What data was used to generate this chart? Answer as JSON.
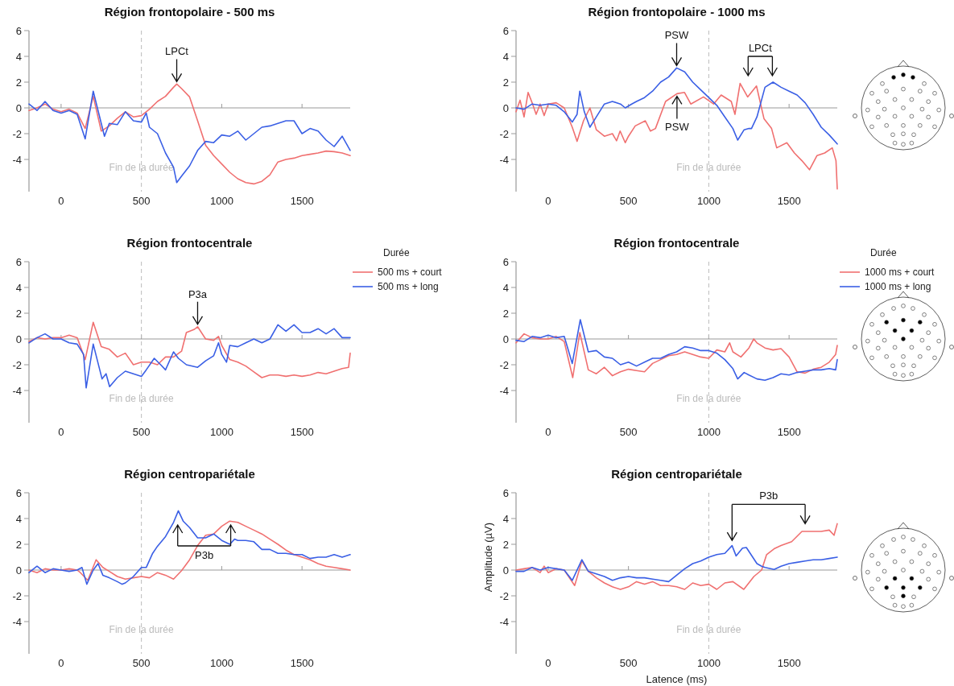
{
  "chart_data": [
    {
      "type": "line",
      "title": "Région frontopolaire - 500 ms",
      "xlim": [
        -200,
        1800
      ],
      "ylim": [
        -6.5,
        6
      ],
      "xticks": [
        0,
        500,
        1000,
        1500
      ],
      "yticks": [
        -4,
        -2,
        0,
        2,
        4,
        6
      ],
      "ref_lines": [
        {
          "axis": "x",
          "value": 500,
          "label": "Fin de la durée",
          "color": "#bbbbbb",
          "line_style": "dashed"
        }
      ],
      "annotations": [
        {
          "text": "LPCt",
          "x": 720,
          "y": 1.85
        }
      ],
      "series": [
        {
          "color": "#f07070",
          "x": [
            -200,
            -150,
            -100,
            -50,
            0,
            50,
            100,
            150,
            200,
            250,
            300,
            350,
            400,
            450,
            500,
            550,
            600,
            650,
            700,
            720,
            750,
            800,
            850,
            900,
            950,
            1000,
            1050,
            1100,
            1150,
            1200,
            1250,
            1300,
            1350,
            1400,
            1450,
            1500,
            1550,
            1600,
            1650,
            1700,
            1750,
            1800
          ],
          "values": [
            -0.2,
            0,
            0.3,
            -0.1,
            -0.3,
            -0.1,
            -0.4,
            -1.6,
            0.9,
            -1.8,
            -1.4,
            -0.8,
            -0.3,
            -0.7,
            -0.6,
            -0.1,
            0.5,
            0.9,
            1.6,
            1.85,
            1.5,
            0.85,
            -1.0,
            -2.9,
            -3.7,
            -4.35,
            -5.0,
            -5.5,
            -5.8,
            -5.9,
            -5.7,
            -5.2,
            -4.2,
            -4.0,
            -3.9,
            -3.7,
            -3.6,
            -3.5,
            -3.35,
            -3.4,
            -3.5,
            -3.7
          ]
        },
        {
          "color": "#3a5fe5",
          "x": [
            -200,
            -150,
            -100,
            -50,
            0,
            50,
            100,
            150,
            200,
            250,
            270,
            300,
            350,
            400,
            450,
            500,
            530,
            550,
            600,
            650,
            700,
            720,
            750,
            800,
            850,
            900,
            950,
            1000,
            1050,
            1100,
            1150,
            1200,
            1250,
            1300,
            1350,
            1400,
            1450,
            1500,
            1550,
            1600,
            1650,
            1700,
            1750,
            1800
          ],
          "values": [
            0.3,
            -0.2,
            0.5,
            -0.2,
            -0.4,
            -0.2,
            -0.5,
            -2.4,
            1.3,
            -1.2,
            -2.2,
            -1.2,
            -1.3,
            -0.3,
            -1.0,
            -1.1,
            -0.4,
            -1.5,
            -2.0,
            -3.5,
            -4.6,
            -5.8,
            -5.3,
            -4.5,
            -3.3,
            -2.6,
            -2.7,
            -2.1,
            -2.2,
            -1.8,
            -2.5,
            -2.0,
            -1.5,
            -1.4,
            -1.2,
            -1.0,
            -1.0,
            -2.0,
            -1.6,
            -1.8,
            -2.5,
            -3.0,
            -2.2,
            -3.3
          ]
        }
      ]
    },
    {
      "type": "line",
      "title": "Région frontopolaire - 1000 ms",
      "xlim": [
        -200,
        1800
      ],
      "ylim": [
        -6.5,
        6
      ],
      "xticks": [
        0,
        500,
        1000,
        1500
      ],
      "yticks": [
        -4,
        -2,
        0,
        2,
        4,
        6
      ],
      "ref_lines": [
        {
          "axis": "x",
          "value": 1000,
          "label": "Fin de la durée",
          "color": "#bbbbbb",
          "line_style": "dashed"
        }
      ],
      "annotations": [
        {
          "text": "PSW",
          "x": 800,
          "y": 3.1
        },
        {
          "text": "PSW",
          "x": 802,
          "y": 1.1
        },
        "LPCt"
      ],
      "series": [
        {
          "color": "#f07070",
          "x": [
            -200,
            -175,
            -150,
            -125,
            -100,
            -75,
            -50,
            -25,
            0,
            50,
            100,
            150,
            180,
            220,
            260,
            300,
            350,
            400,
            426,
            448,
            480,
            500,
            542,
            605,
            637,
            668,
            731,
            802,
            849,
            888,
            967,
            1030,
            1077,
            1140,
            1163,
            1195,
            1242,
            1297,
            1344,
            1391,
            1423,
            1486,
            1533,
            1580,
            1627,
            1674,
            1722,
            1769,
            1792,
            1800
          ],
          "values": [
            -0.3,
            0.6,
            -0.7,
            1.2,
            0.4,
            -0.5,
            0.3,
            -0.6,
            0.3,
            0.4,
            0.0,
            -1.5,
            -2.6,
            -1.0,
            0.0,
            -1.7,
            -2.2,
            -2.0,
            -2.55,
            -1.8,
            -2.7,
            -2.2,
            -1.4,
            -1.0,
            -1.8,
            -1.6,
            0.5,
            1.1,
            1.2,
            0.3,
            0.85,
            0.3,
            1.0,
            0.5,
            -0.5,
            1.9,
            0.85,
            1.7,
            -0.85,
            -1.6,
            -3.1,
            -2.7,
            -3.5,
            -4.1,
            -4.8,
            -3.7,
            -3.5,
            -3.1,
            -4.1,
            -6.3
          ]
        },
        {
          "color": "#3a5fe5",
          "x": [
            -200,
            -150,
            -100,
            -50,
            0,
            50,
            100,
            150,
            180,
            197,
            225,
            260,
            300,
            350,
            400,
            450,
            480,
            520,
            550,
            600,
            650,
            700,
            750,
            800,
            850,
            900,
            950,
            1000,
            1050,
            1100,
            1150,
            1180,
            1220,
            1250,
            1266,
            1300,
            1350,
            1400,
            1450,
            1500,
            1550,
            1600,
            1650,
            1700,
            1750,
            1800
          ],
          "values": [
            0.0,
            -0.1,
            0.3,
            0.2,
            0.3,
            0.2,
            -0.3,
            -1.1,
            -0.5,
            1.3,
            -0.3,
            -1.5,
            -0.7,
            0.3,
            0.5,
            0.3,
            0.0,
            0.3,
            0.5,
            0.8,
            1.3,
            2.0,
            2.4,
            3.1,
            2.8,
            2.0,
            1.4,
            0.8,
            0.2,
            -0.7,
            -1.6,
            -2.5,
            -1.7,
            -1.6,
            -1.6,
            -0.7,
            1.6,
            2.0,
            1.6,
            1.3,
            1.0,
            0.4,
            -0.5,
            -1.5,
            -2.1,
            -2.8
          ]
        }
      ]
    },
    {
      "type": "line",
      "title": "Région frontocentrale",
      "xlim": [
        -200,
        1800
      ],
      "ylim": [
        -6.5,
        6
      ],
      "xticks": [
        0,
        500,
        1000,
        1500
      ],
      "yticks": [
        -4,
        -2,
        0,
        2,
        4,
        6
      ],
      "legend": "right",
      "legend_title": "Durée",
      "ref_lines": [
        {
          "axis": "x",
          "value": 500,
          "label": "Fin de la durée",
          "color": "#bbbbbb",
          "line_style": "dashed"
        }
      ],
      "annotations": [
        {
          "text": "P3a",
          "x": 850,
          "y": 0.95
        }
      ],
      "series": [
        {
          "name": "500 ms + court",
          "color": "#f07070",
          "x": [
            -200,
            -150,
            -100,
            -50,
            0,
            50,
            100,
            150,
            200,
            250,
            300,
            350,
            400,
            450,
            500,
            550,
            600,
            650,
            700,
            750,
            780,
            830,
            850,
            900,
            950,
            980,
            1000,
            1050,
            1100,
            1150,
            1200,
            1250,
            1300,
            1350,
            1400,
            1450,
            1500,
            1550,
            1600,
            1650,
            1700,
            1750,
            1790,
            1800
          ],
          "values": [
            -0.2,
            0.1,
            0.0,
            0.1,
            0.1,
            0.3,
            0.1,
            -1.6,
            1.3,
            -0.6,
            -0.8,
            -1.4,
            -1.1,
            -2.0,
            -1.8,
            -1.8,
            -2.0,
            -1.4,
            -1.4,
            -0.95,
            0.5,
            0.75,
            0.95,
            0.0,
            -0.1,
            0.2,
            -0.5,
            -1.6,
            -1.8,
            -2.1,
            -2.55,
            -3.0,
            -2.8,
            -2.8,
            -2.9,
            -2.8,
            -2.9,
            -2.8,
            -2.6,
            -2.7,
            -2.5,
            -2.3,
            -2.2,
            -1.1
          ]
        },
        {
          "name": "500 ms + long",
          "color": "#3a5fe5",
          "x": [
            -200,
            -150,
            -100,
            -50,
            0,
            50,
            100,
            140,
            156,
            200,
            255,
            280,
            302,
            350,
            400,
            450,
            500,
            530,
            580,
            620,
            650,
            700,
            730,
            780,
            850,
            900,
            950,
            980,
            1000,
            1030,
            1050,
            1100,
            1150,
            1200,
            1250,
            1300,
            1350,
            1400,
            1450,
            1500,
            1550,
            1600,
            1650,
            1700,
            1750,
            1800
          ],
          "values": [
            -0.3,
            0.1,
            0.4,
            0.0,
            0.0,
            -0.3,
            -0.4,
            -1.2,
            -3.8,
            -0.4,
            -3.1,
            -2.7,
            -3.7,
            -3.0,
            -2.5,
            -2.7,
            -2.9,
            -2.4,
            -1.5,
            -2.0,
            -2.4,
            -1.0,
            -1.5,
            -2.0,
            -2.2,
            -1.7,
            -1.3,
            -0.3,
            -1.2,
            -1.8,
            -0.5,
            -0.6,
            -0.3,
            0.0,
            -0.3,
            0.0,
            1.1,
            0.6,
            1.1,
            0.5,
            0.5,
            0.8,
            0.4,
            0.8,
            0.1,
            0.1
          ]
        }
      ]
    },
    {
      "type": "line",
      "title": "Région frontocentrale",
      "xlim": [
        -200,
        1800
      ],
      "ylim": [
        -6.5,
        6
      ],
      "xticks": [
        0,
        500,
        1000,
        1500
      ],
      "yticks": [
        -4,
        -2,
        0,
        2,
        4,
        6
      ],
      "legend": "right",
      "legend_title": "Durée",
      "ref_lines": [
        {
          "axis": "x",
          "value": 1000,
          "label": "Fin de la durée",
          "color": "#bbbbbb",
          "line_style": "dashed"
        }
      ],
      "series": [
        {
          "name": "1000 ms + court",
          "color": "#f07070",
          "x": [
            -200,
            -150,
            -100,
            -50,
            0,
            50,
            100,
            153,
            197,
            250,
            300,
            350,
            400,
            450,
            500,
            550,
            600,
            650,
            700,
            750,
            800,
            850,
            900,
            950,
            1000,
            1050,
            1100,
            1130,
            1150,
            1200,
            1250,
            1280,
            1300,
            1350,
            1400,
            1450,
            1500,
            1550,
            1600,
            1650,
            1700,
            1750,
            1790,
            1800
          ],
          "values": [
            -0.3,
            0.4,
            0.1,
            0.0,
            0.0,
            0.2,
            -0.2,
            -3.0,
            0.5,
            -2.4,
            -2.7,
            -2.2,
            -2.85,
            -2.55,
            -2.35,
            -2.45,
            -2.55,
            -1.9,
            -1.6,
            -1.3,
            -1.2,
            -1.0,
            -1.2,
            -1.4,
            -1.5,
            -0.85,
            -1.0,
            -0.3,
            -1.0,
            -1.4,
            -0.7,
            0.0,
            -0.3,
            -0.7,
            -0.85,
            -0.75,
            -1.4,
            -2.55,
            -2.65,
            -2.35,
            -2.2,
            -1.8,
            -1.2,
            -0.5
          ]
        },
        {
          "name": "1000 ms + long",
          "color": "#3a5fe5",
          "x": [
            -200,
            -150,
            -100,
            -50,
            0,
            50,
            100,
            150,
            200,
            250,
            300,
            350,
            400,
            450,
            500,
            550,
            600,
            650,
            700,
            750,
            800,
            850,
            900,
            950,
            1000,
            1050,
            1100,
            1150,
            1180,
            1220,
            1250,
            1300,
            1350,
            1400,
            1450,
            1500,
            1550,
            1600,
            1650,
            1700,
            1750,
            1790,
            1800
          ],
          "values": [
            -0.1,
            -0.2,
            0.2,
            0.1,
            0.3,
            0.1,
            0.2,
            -1.9,
            1.5,
            -1.0,
            -0.9,
            -1.4,
            -1.5,
            -2.0,
            -1.8,
            -2.1,
            -1.8,
            -1.5,
            -1.5,
            -1.2,
            -1.0,
            -0.6,
            -0.7,
            -0.9,
            -0.9,
            -1.1,
            -1.6,
            -2.3,
            -3.1,
            -2.6,
            -2.8,
            -3.1,
            -3.2,
            -3.0,
            -2.7,
            -2.8,
            -2.6,
            -2.5,
            -2.4,
            -2.4,
            -2.3,
            -2.4,
            -1.6
          ]
        }
      ]
    },
    {
      "type": "line",
      "title": "Région centropariétale",
      "xlim": [
        -200,
        1800
      ],
      "ylim": [
        -6.5,
        6
      ],
      "xticks": [
        0,
        500,
        1000,
        1500
      ],
      "yticks": [
        -4,
        -2,
        0,
        2,
        4,
        6
      ],
      "ref_lines": [
        {
          "axis": "x",
          "value": 500,
          "label": "Fin de la durée",
          "color": "#bbbbbb",
          "line_style": "dashed"
        }
      ],
      "annotations": [
        "P3b"
      ],
      "series": [
        {
          "color": "#f07070",
          "x": [
            -200,
            -150,
            -100,
            -50,
            0,
            50,
            100,
            120,
            166,
            218,
            260,
            300,
            350,
            400,
            450,
            500,
            550,
            600,
            650,
            700,
            750,
            800,
            850,
            900,
            950,
            1000,
            1050,
            1100,
            1150,
            1200,
            1250,
            1300,
            1350,
            1400,
            1450,
            1500,
            1550,
            1600,
            1650,
            1700,
            1750,
            1800
          ],
          "values": [
            0.0,
            -0.2,
            0.1,
            0.0,
            0.0,
            0.1,
            0.0,
            -0.2,
            -0.8,
            0.8,
            0.2,
            -0.1,
            -0.5,
            -0.7,
            -0.6,
            -0.5,
            -0.6,
            -0.2,
            -0.4,
            -0.7,
            -0.05,
            0.8,
            1.9,
            2.7,
            2.8,
            3.4,
            3.8,
            3.7,
            3.4,
            3.1,
            2.8,
            2.4,
            2.0,
            1.55,
            1.2,
            1.0,
            0.8,
            0.5,
            0.3,
            0.2,
            0.1,
            0.0
          ]
        },
        {
          "color": "#3a5fe5",
          "x": [
            -200,
            -150,
            -100,
            -50,
            0,
            50,
            100,
            130,
            160,
            200,
            230,
            260,
            300,
            350,
            380,
            400,
            450,
            500,
            530,
            570,
            600,
            650,
            700,
            730,
            760,
            800,
            850,
            900,
            950,
            1000,
            1050,
            1080,
            1100,
            1150,
            1200,
            1250,
            1300,
            1350,
            1400,
            1450,
            1500,
            1550,
            1600,
            1650,
            1700,
            1750,
            1800
          ],
          "values": [
            -0.2,
            0.3,
            -0.2,
            0.1,
            0.0,
            -0.1,
            0.0,
            0.2,
            -1.1,
            0.0,
            0.5,
            -0.4,
            -0.6,
            -0.9,
            -1.1,
            -1.0,
            -0.5,
            0.2,
            0.2,
            1.3,
            1.85,
            2.6,
            3.7,
            4.6,
            3.8,
            3.3,
            2.5,
            2.5,
            2.8,
            2.3,
            2.0,
            2.4,
            2.3,
            2.3,
            2.2,
            1.6,
            1.6,
            1.3,
            1.3,
            1.2,
            1.2,
            0.9,
            1.0,
            1.0,
            1.2,
            1.0,
            1.2
          ]
        }
      ]
    },
    {
      "type": "line",
      "title": "Région centropariétale",
      "xlabel": "Latence (ms)",
      "ylabel": "Amplitude (µV)",
      "xlim": [
        -200,
        1800
      ],
      "ylim": [
        -6.5,
        6
      ],
      "xticks": [
        0,
        500,
        1000,
        1500
      ],
      "yticks": [
        -4,
        -2,
        0,
        2,
        4,
        6
      ],
      "ref_lines": [
        {
          "axis": "x",
          "value": 1000,
          "label": "Fin de la durée",
          "color": "#bbbbbb",
          "line_style": "dashed"
        }
      ],
      "annotations": [
        "P3b"
      ],
      "series": [
        {
          "color": "#f07070",
          "x": [
            -200,
            -150,
            -100,
            -50,
            -25,
            0,
            50,
            100,
            165,
            210,
            250,
            300,
            350,
            400,
            450,
            500,
            550,
            600,
            650,
            700,
            750,
            800,
            850,
            900,
            950,
            1000,
            1050,
            1100,
            1150,
            1218,
            1281,
            1329,
            1360,
            1407,
            1450,
            1516,
            1580,
            1650,
            1700,
            1750,
            1780,
            1800
          ],
          "values": [
            0.0,
            0.1,
            0.2,
            -0.2,
            0.3,
            -0.2,
            0.1,
            0.0,
            -1.2,
            0.7,
            -0.1,
            -0.6,
            -1.0,
            -1.3,
            -1.5,
            -1.3,
            -0.9,
            -1.1,
            -0.9,
            -1.2,
            -1.2,
            -1.3,
            -1.5,
            -1.0,
            -1.2,
            -1.1,
            -1.5,
            -1.0,
            -0.9,
            -1.5,
            -0.5,
            0.0,
            1.2,
            1.65,
            1.9,
            2.2,
            3.0,
            3.0,
            3.0,
            3.1,
            2.7,
            3.6
          ]
        },
        {
          "color": "#3a5fe5",
          "x": [
            -200,
            -150,
            -100,
            -50,
            0,
            50,
            100,
            150,
            210,
            250,
            300,
            350,
            400,
            450,
            500,
            550,
            600,
            650,
            700,
            750,
            800,
            850,
            900,
            950,
            1000,
            1050,
            1100,
            1145,
            1170,
            1210,
            1234,
            1300,
            1329,
            1350,
            1407,
            1450,
            1500,
            1550,
            1600,
            1650,
            1700,
            1750,
            1800
          ],
          "values": [
            -0.1,
            -0.1,
            0.2,
            0.0,
            0.2,
            0.1,
            0.0,
            -0.8,
            0.8,
            -0.1,
            -0.3,
            -0.5,
            -0.8,
            -0.6,
            -0.5,
            -0.6,
            -0.6,
            -0.7,
            -0.8,
            -0.9,
            -0.4,
            0.1,
            0.5,
            0.7,
            1.0,
            1.2,
            1.3,
            1.9,
            1.1,
            1.7,
            1.75,
            0.5,
            0.3,
            0.2,
            0.05,
            0.3,
            0.5,
            0.6,
            0.7,
            0.8,
            0.8,
            0.9,
            1.0
          ]
        }
      ]
    }
  ]
}
